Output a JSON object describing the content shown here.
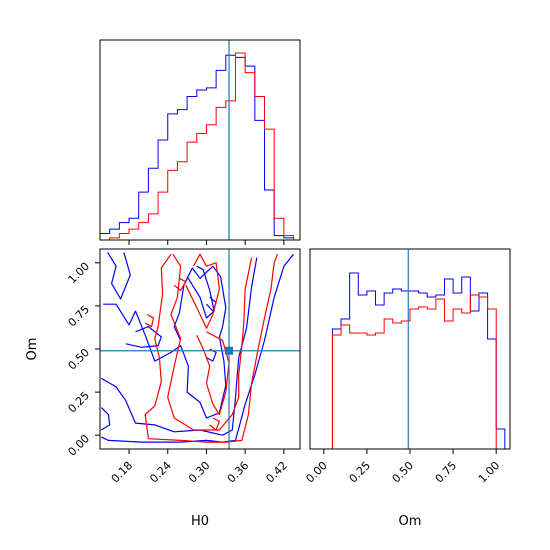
{
  "chart_data": {
    "type": "corner",
    "parameters": [
      "H0",
      "Om"
    ],
    "truth": {
      "H0": 0.335,
      "Om": 0.49
    },
    "colors": {
      "blue": "#0000ff",
      "red": "#ff0000",
      "truth": "#1f77b4"
    },
    "panels": {
      "H0_hist": {
        "xlim": [
          0.135,
          0.445
        ],
        "bin_edges": [
          0.135,
          0.15,
          0.165,
          0.18,
          0.195,
          0.21,
          0.225,
          0.24,
          0.255,
          0.27,
          0.285,
          0.3,
          0.315,
          0.33,
          0.345,
          0.36,
          0.375,
          0.39,
          0.405,
          0.42,
          0.435
        ],
        "series": [
          {
            "color": "blue",
            "counts": [
              3,
              5,
              8,
              10,
              22,
              33,
              46,
              58,
              60,
              66,
              69,
              70,
              78,
              85,
              84,
              80,
              55,
              23,
              2,
              1
            ]
          },
          {
            "color": "red",
            "counts": [
              0,
              1,
              3,
              5,
              8,
              12,
              22,
              32,
              36,
              45,
              49,
              53,
              61,
              64,
              86,
              77,
              66,
              51,
              10,
              2
            ]
          }
        ],
        "ylim": [
          0,
          92
        ]
      },
      "Om_hist": {
        "xlim": [
          -0.08,
          1.08
        ],
        "bin_edges": [
          -0.05,
          0.0,
          0.05,
          0.1,
          0.15,
          0.2,
          0.25,
          0.3,
          0.35,
          0.4,
          0.45,
          0.5,
          0.55,
          0.6,
          0.65,
          0.7,
          0.75,
          0.8,
          0.85,
          0.9,
          0.95,
          1.0,
          1.05
        ],
        "series": [
          {
            "color": "blue",
            "counts": [
              0,
              0,
              60,
              65,
              88,
              77,
              79,
              72,
              78,
              80,
              79,
              79,
              78,
              76,
              77,
              85,
              78,
              86,
              69,
              78,
              55,
              10
            ]
          },
          {
            "color": "red",
            "counts": [
              0,
              0,
              57,
              62,
              58,
              58,
              57,
              58,
              65,
              63,
              64,
              70,
              71,
              70,
              75,
              64,
              70,
              68,
              77,
              76,
              70,
              0
            ]
          }
        ],
        "ylim": [
          0,
          100
        ]
      },
      "H0_Om": {
        "xlim": [
          0.135,
          0.445
        ],
        "ylim": [
          -0.08,
          1.08
        ],
        "contours": [
          {
            "color": "blue",
            "paths": [
              [
                [
                  0.137,
                  -0.01
                ],
                [
                  0.148,
                  -0.03
                ],
                [
                  0.2,
                  -0.04
                ],
                [
                  0.26,
                  -0.04
                ],
                [
                  0.3,
                  -0.03
                ],
                [
                  0.325,
                  -0.04
                ],
                [
                  0.345,
                  -0.03
                ],
                [
                  0.36,
                  0.18
                ],
                [
                  0.375,
                  0.35
                ],
                [
                  0.39,
                  0.55
                ],
                [
                  0.405,
                  0.8
                ],
                [
                  0.42,
                  0.98
                ],
                [
                  0.435,
                  1.05
                ]
              ],
              [
                [
                  0.137,
                  0.33
                ],
                [
                  0.16,
                  0.28
                ],
                [
                  0.175,
                  0.2
                ],
                [
                  0.19,
                  0.07
                ],
                [
                  0.22,
                  0.06
                ],
                [
                  0.25,
                  0.02
                ],
                [
                  0.29,
                  0.03
                ],
                [
                  0.325,
                  0.0
                ],
                [
                  0.34,
                  0.03
                ],
                [
                  0.345,
                  0.22
                ],
                [
                  0.35,
                  0.45
                ],
                [
                  0.362,
                  0.62
                ],
                [
                  0.37,
                  0.86
                ],
                [
                  0.378,
                  1.03
                ]
              ],
              [
                [
                  0.147,
                  1.06
                ],
                [
                  0.16,
                  0.98
                ],
                [
                  0.153,
                  0.88
                ],
                [
                  0.167,
                  0.79
                ],
                [
                  0.182,
                  0.93
                ],
                [
                  0.172,
                  1.06
                ]
              ],
              [
                [
                  0.14,
                  0.76
                ],
                [
                  0.16,
                  0.76
                ],
                [
                  0.18,
                  0.64
                ],
                [
                  0.19,
                  0.72
                ],
                [
                  0.205,
                  0.58
                ],
                [
                  0.22,
                  0.43
                ],
                [
                  0.245,
                  0.48
                ],
                [
                  0.26,
                  0.52
                ],
                [
                  0.272,
                  0.4
                ],
                [
                  0.27,
                  0.25
                ],
                [
                  0.29,
                  0.19
                ],
                [
                  0.3,
                  0.1
                ],
                [
                  0.32,
                  0.13
                ],
                [
                  0.33,
                  0.29
                ],
                [
                  0.327,
                  0.43
                ],
                [
                  0.32,
                  0.57
                ],
                [
                  0.325,
                  0.63
                ],
                [
                  0.33,
                  0.74
                ],
                [
                  0.322,
                  0.92
                ],
                [
                  0.31,
                  0.98
                ],
                [
                  0.29,
                  0.91
                ],
                [
                  0.278,
                  0.97
                ],
                [
                  0.265,
                  0.87
                ],
                [
                  0.258,
                  0.71
                ],
                [
                  0.25,
                  0.63
                ],
                [
                  0.26,
                  0.55
                ]
              ],
              [
                [
                  0.27,
                  0.92
                ],
                [
                  0.29,
                  0.8
                ],
                [
                  0.3,
                  0.68
                ],
                [
                  0.312,
                  0.72
                ],
                [
                  0.305,
                  0.84
                ],
                [
                  0.295,
                  0.96
                ],
                [
                  0.285,
                  0.98
                ]
              ],
              [
                [
                  0.175,
                  0.53
                ],
                [
                  0.2,
                  0.51
                ],
                [
                  0.225,
                  0.52
                ],
                [
                  0.23,
                  0.57
                ],
                [
                  0.21,
                  0.63
                ],
                [
                  0.19,
                  0.6
                ]
              ],
              [
                [
                  0.3,
                  0.76
                ],
                [
                  0.31,
                  0.72
                ],
                [
                  0.315,
                  0.77
                ],
                [
                  0.305,
                  0.8
                ]
              ],
              [
                [
                  0.137,
                  0.16
                ],
                [
                  0.148,
                  0.12
                ],
                [
                  0.15,
                  0.06
                ],
                [
                  0.137,
                  0.03
                ]
              ],
              [
                [
                  0.3,
                  0.45
                ],
                [
                  0.31,
                  0.43
                ],
                [
                  0.315,
                  0.48
                ],
                [
                  0.305,
                  0.5
                ]
              ]
            ]
          },
          {
            "color": "red",
            "paths": [
              [
                [
                  0.21,
                  -0.02
                ],
                [
                  0.26,
                  -0.03
                ],
                [
                  0.3,
                  -0.04
                ],
                [
                  0.33,
                  -0.04
                ],
                [
                  0.355,
                  -0.03
                ],
                [
                  0.365,
                  0.12
                ],
                [
                  0.37,
                  0.3
                ],
                [
                  0.38,
                  0.5
                ],
                [
                  0.39,
                  0.68
                ],
                [
                  0.4,
                  0.85
                ],
                [
                  0.405,
                  1.0
                ],
                [
                  0.41,
                  1.05
                ]
              ],
              [
                [
                  0.21,
                  -0.02
                ],
                [
                  0.205,
                  0.12
                ],
                [
                  0.22,
                  0.17
                ],
                [
                  0.23,
                  0.31
                ],
                [
                  0.227,
                  0.45
                ],
                [
                  0.22,
                  0.56
                ],
                [
                  0.225,
                  0.63
                ],
                [
                  0.232,
                  0.82
                ],
                [
                  0.23,
                  0.97
                ],
                [
                  0.245,
                  1.05
                ]
              ],
              [
                [
                  0.248,
                  1.05
                ],
                [
                  0.26,
                  0.98
                ],
                [
                  0.255,
                  0.8
                ],
                [
                  0.245,
                  0.7
                ],
                [
                  0.26,
                  0.56
                ],
                [
                  0.25,
                  0.4
                ],
                [
                  0.24,
                  0.22
                ],
                [
                  0.25,
                  0.1
                ],
                [
                  0.28,
                  0.03
                ],
                [
                  0.32,
                  0.03
                ],
                [
                  0.34,
                  0.12
                ],
                [
                  0.35,
                  0.22
                ],
                [
                  0.35,
                  0.35
                ],
                [
                  0.355,
                  0.52
                ],
                [
                  0.358,
                  0.66
                ],
                [
                  0.36,
                  0.85
                ],
                [
                  0.37,
                  1.03
                ]
              ],
              [
                [
                  0.268,
                  0.87
                ],
                [
                  0.285,
                  0.74
                ],
                [
                  0.3,
                  0.62
                ],
                [
                  0.31,
                  0.7
                ],
                [
                  0.32,
                  0.85
                ],
                [
                  0.315,
                  1.0
                ],
                [
                  0.3,
                  0.98
                ],
                [
                  0.29,
                  1.05
                ],
                [
                  0.28,
                  0.98
                ]
              ],
              [
                [
                  0.285,
                  0.58
                ],
                [
                  0.295,
                  0.5
                ],
                [
                  0.305,
                  0.4
                ],
                [
                  0.3,
                  0.3
                ],
                [
                  0.31,
                  0.18
                ],
                [
                  0.32,
                  0.12
                ],
                [
                  0.33,
                  0.25
                ],
                [
                  0.335,
                  0.42
                ],
                [
                  0.325,
                  0.55
                ],
                [
                  0.31,
                  0.58
                ],
                [
                  0.3,
                  0.6
                ]
              ],
              [
                [
                  0.205,
                  0.65
                ],
                [
                  0.215,
                  0.63
                ],
                [
                  0.218,
                  0.68
                ],
                [
                  0.208,
                  0.7
                ]
              ],
              [
                [
                  0.25,
                  0.87
                ],
                [
                  0.26,
                  0.84
                ],
                [
                  0.268,
                  0.89
                ],
                [
                  0.258,
                  0.91
                ]
              ],
              [
                [
                  0.305,
                  0.06
                ],
                [
                  0.315,
                  0.03
                ],
                [
                  0.32,
                  0.08
                ],
                [
                  0.31,
                  0.1
                ]
              ]
            ]
          }
        ]
      }
    },
    "axes": {
      "H0": {
        "label": "H0",
        "ticks": [
          0.18,
          0.24,
          0.3,
          0.36,
          0.42
        ],
        "tick_labels": [
          "0.18",
          "0.24",
          "0.30",
          "0.36",
          "0.42"
        ]
      },
      "Om": {
        "label": "Om",
        "ticks": [
          0.0,
          0.25,
          0.5,
          0.75,
          1.0
        ],
        "tick_labels": [
          "0.00",
          "0.25",
          "0.50",
          "0.75",
          "1.00"
        ]
      }
    }
  }
}
